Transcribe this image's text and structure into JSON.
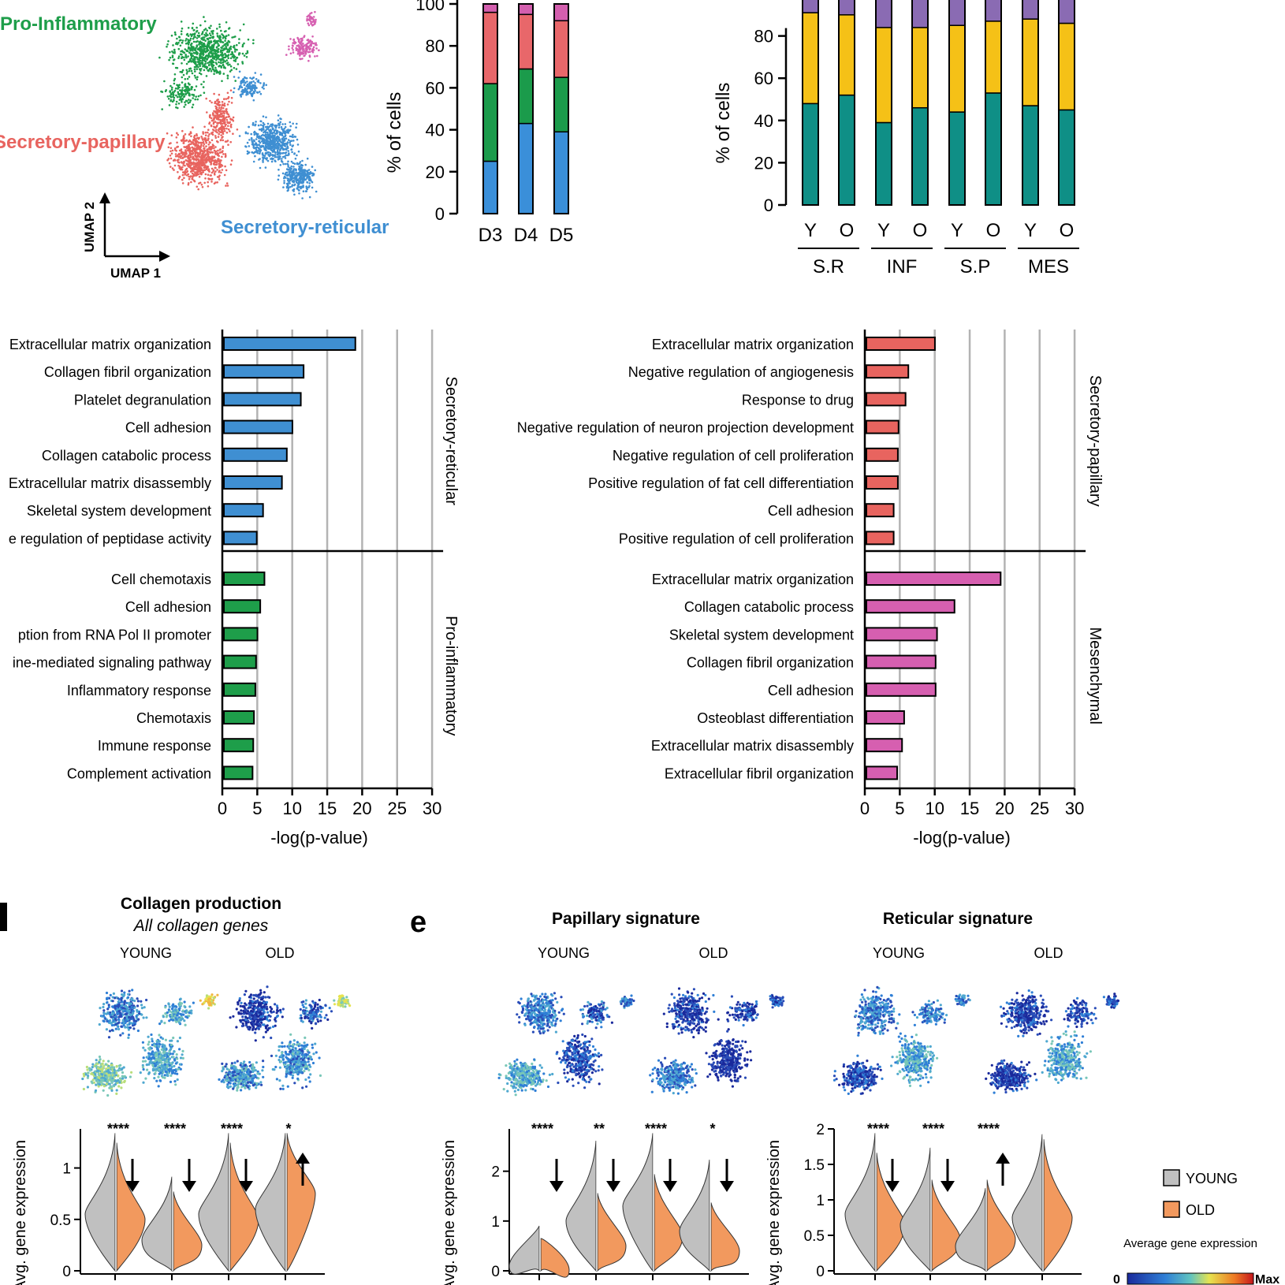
{
  "colors": {
    "pro_inflammatory": "#1e9e4a",
    "secretory_papillary": "#e8645f",
    "secretory_reticular": "#3f8fd2",
    "mesenchymal": "#d65fb0",
    "stack_blue": "#3a8fd9",
    "stack_green": "#1b9b4b",
    "stack_red": "#e8676a",
    "stack_pink": "#d35fae",
    "teal": "#0f8f86",
    "yellow": "#f5c117",
    "purple": "#8a6bb3",
    "young": "#c0c0c0",
    "old": "#f2995e",
    "grid": "#b3b3b3"
  },
  "umap": {
    "labels": [
      "Pro-Inflammatory",
      "Secretory-papillary",
      "Secretory-reticular"
    ],
    "axis_y": "UMAP 2",
    "axis_x": "UMAP 1"
  },
  "panels": {
    "d_letter": "d",
    "e_letter": "e"
  },
  "chart_data": [
    {
      "type": "bar",
      "stacked": true,
      "categories": [
        "D3",
        "D4",
        "D5"
      ],
      "ylabel": "% of cells",
      "yticks": [
        0,
        20,
        40,
        60,
        80,
        100
      ],
      "ylim": [
        0,
        100
      ],
      "series": [
        {
          "color_key": "stack_blue",
          "values": [
            25,
            43,
            39
          ]
        },
        {
          "color_key": "stack_green",
          "values": [
            37,
            26,
            26
          ]
        },
        {
          "color_key": "stack_red",
          "values": [
            34,
            26,
            27
          ]
        },
        {
          "color_key": "stack_pink",
          "values": [
            4,
            5,
            8
          ]
        }
      ]
    },
    {
      "type": "bar",
      "stacked": true,
      "categories": [
        "Y",
        "O",
        "Y",
        "O",
        "Y",
        "O",
        "Y",
        "O"
      ],
      "groups": [
        "S.R",
        "INF",
        "S.P",
        "MES"
      ],
      "ylabel": "% of cells",
      "yticks": [
        0,
        20,
        40,
        60,
        80
      ],
      "ylim": [
        0,
        100
      ],
      "series": [
        {
          "color_key": "teal",
          "values": [
            48,
            52,
            39,
            46,
            44,
            53,
            47,
            45
          ]
        },
        {
          "color_key": "yellow",
          "values": [
            43,
            38,
            45,
            38,
            41,
            34,
            41,
            41
          ]
        },
        {
          "color_key": "purple",
          "values": [
            9,
            10,
            16,
            16,
            15,
            13,
            12,
            14
          ]
        }
      ]
    },
    {
      "type": "bar",
      "orientation": "horizontal",
      "xlabel": "-log(p-value)",
      "xticks": [
        0,
        5,
        10,
        15,
        20,
        25,
        30
      ],
      "xlim": [
        0,
        30
      ],
      "panels": [
        {
          "name": "Secretory-reticular",
          "color_key": "secretory_reticular",
          "categories": [
            "Extracellular matrix organization",
            "Collagen fibril organization",
            "Platelet degranulation",
            "Cell adhesion",
            "Collagen catabolic process",
            "Extracellular matrix disassembly",
            "Skeletal system development",
            "e regulation of peptidase activity"
          ],
          "values": [
            18.8,
            11.4,
            11.0,
            9.8,
            9.0,
            8.3,
            5.6,
            4.7
          ]
        },
        {
          "name": "Pro-inflammatory",
          "color_key": "pro_inflammatory",
          "categories": [
            "Cell chemotaxis",
            "Cell adhesion",
            "ption from RNA  Pol II promoter",
            "ine-mediated signaling pathway",
            "Inflammatory response",
            "Chemotaxis",
            "Immune response",
            "Complement activation"
          ],
          "values": [
            5.8,
            5.2,
            4.8,
            4.6,
            4.5,
            4.3,
            4.2,
            4.1
          ]
        }
      ]
    },
    {
      "type": "bar",
      "orientation": "horizontal",
      "xlabel": "-log(p-value)",
      "xticks": [
        0,
        5,
        10,
        15,
        20,
        25,
        30
      ],
      "xlim": [
        0,
        30
      ],
      "panels": [
        {
          "name": "Secretory-papillary",
          "color_key": "secretory_papillary",
          "categories": [
            "Extracellular matrix organization",
            "Negative regulation of angiogenesis",
            "Response to drug",
            "Negative regulation of neuron projection development",
            "Negative regulation of cell proliferation",
            "Positive regulation of fat cell differentiation",
            "Cell adhesion",
            "Positive regulation of cell proliferation"
          ],
          "values": [
            9.8,
            6.0,
            5.6,
            4.6,
            4.5,
            4.5,
            3.9,
            3.9
          ]
        },
        {
          "name": "Mesenchymal",
          "color_key": "mesenchymal",
          "categories": [
            "Extracellular matrix organization",
            "Collagen catabolic process",
            "Skeletal system development",
            "Collagen fibril organization",
            "Cell adhesion",
            "Osteoblast differentiation",
            "Extracellular matrix disassembly",
            "Extracellular fibril organization"
          ],
          "values": [
            19.2,
            12.6,
            10.1,
            9.9,
            9.9,
            5.4,
            5.1,
            4.4
          ]
        }
      ]
    },
    {
      "type": "violin",
      "title": "Collagen production",
      "subtitle": "All collagen genes",
      "umap_labels": [
        "YOUNG",
        "OLD"
      ],
      "ylabel": "Avg. gene expression",
      "yticks": [
        0,
        0.5,
        1
      ],
      "ylim": [
        0,
        1.38
      ],
      "significance": [
        "****",
        "****",
        "****",
        "*"
      ],
      "arrows": [
        "down",
        "down",
        "down",
        "up"
      ],
      "young_medians": [
        0.55,
        0.3,
        0.55,
        0.6
      ],
      "old_medians": [
        0.5,
        0.25,
        0.5,
        0.75
      ]
    },
    {
      "type": "violin",
      "title": "Papillary signature",
      "umap_labels": [
        "YOUNG",
        "OLD"
      ],
      "ylabel": "Avg. gene expression",
      "yticks": [
        0,
        1,
        2
      ],
      "ylim": [
        0,
        2.85
      ],
      "significance": [
        "****",
        "**",
        "****",
        "*"
      ],
      "arrows": [
        "down",
        "down",
        "down",
        "down"
      ],
      "young_medians": [
        0.1,
        1.0,
        1.3,
        0.8
      ],
      "old_medians": [
        0.02,
        0.5,
        0.7,
        0.4
      ]
    },
    {
      "type": "violin",
      "title": "Reticular signature",
      "umap_labels": [
        "YOUNG",
        "OLD"
      ],
      "ylabel": "Avg. gene expression",
      "yticks": [
        0,
        0.5,
        1,
        1.5,
        2
      ],
      "ylim": [
        0,
        2.0
      ],
      "significance": [
        "****",
        "****",
        "****",
        ""
      ],
      "arrows": [
        "down",
        "down",
        "up",
        ""
      ],
      "young_medians": [
        0.8,
        0.65,
        0.35,
        0.75
      ],
      "old_medians": [
        0.65,
        0.45,
        0.45,
        0.75
      ]
    }
  ],
  "legend": {
    "young": "YOUNG",
    "old": "OLD",
    "gradient_title": "Average gene expression",
    "min": "0",
    "max": "Max"
  }
}
